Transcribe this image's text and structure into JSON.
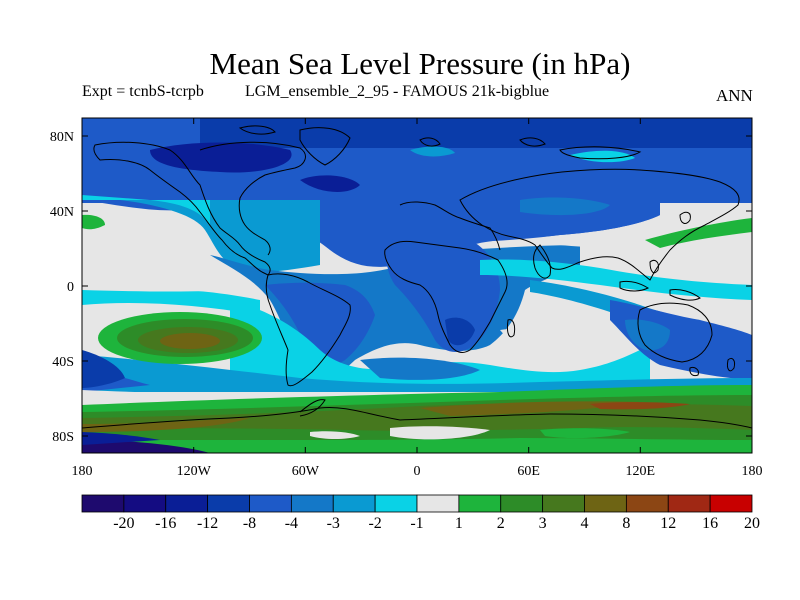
{
  "title": "Mean Sea Level Pressure (in hPa)",
  "experiment": "Expt = tcnbS-tcrpb",
  "dataset": "LGM_ensemble_2_95 - FAMOUS 21k-bigblue",
  "season": "ANN",
  "map": {
    "lat_ticks": [
      "80N",
      "40N",
      "0",
      "40S",
      "80S"
    ],
    "lon_ticks": [
      "180",
      "120W",
      "60W",
      "0",
      "60E",
      "120E",
      "180"
    ],
    "background": "#e6e6e6"
  },
  "colorbar": {
    "labels": [
      "-20",
      "-16",
      "-12",
      "-8",
      "-4",
      "-3",
      "-2",
      "-1",
      "1",
      "2",
      "3",
      "4",
      "8",
      "12",
      "16",
      "20"
    ],
    "colors": [
      "#1e0a6e",
      "#140c82",
      "#0a1e96",
      "#0a3caa",
      "#1e5ac8",
      "#1478c8",
      "#0a9ad2",
      "#0ad2e6",
      "#e6e6e6",
      "#1eb43c",
      "#2d8c28",
      "#46781e",
      "#6e6414",
      "#8c4614",
      "#a02814",
      "#c80000"
    ]
  }
}
